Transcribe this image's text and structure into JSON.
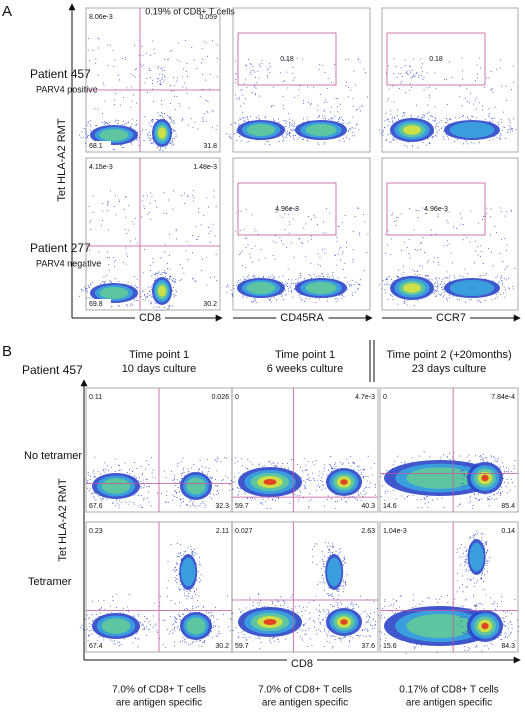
{
  "panel_a": {
    "letter": "A",
    "header": "0.19% of CD8+ T cells",
    "y_axis": "Tet HLA-A2 RMT",
    "x_axes": [
      "CD8",
      "CD45RA",
      "CCR7"
    ],
    "rows": [
      {
        "patient": "Patient 457",
        "status": "PARV4 positive",
        "quadrants": [
          "8.06e-3",
          "0.059",
          "68.1",
          "31.8"
        ],
        "gates": [
          "0.18",
          "0.18"
        ]
      },
      {
        "patient": "Patient 277",
        "status": "PARV4 negative",
        "quadrants": [
          "4.15e-3",
          "1.48e-3",
          "69.8",
          "30.2"
        ],
        "gates": [
          "4.96e-3",
          "4.96e-3"
        ]
      }
    ]
  },
  "panel_b": {
    "letter": "B",
    "patient": "Patient 457",
    "y_axis": "Tet HLA-A2 RMT",
    "x_axis": "CD8",
    "row_labels": [
      "No tetramer",
      "Tetramer"
    ],
    "columns": [
      {
        "header": [
          "Time point 1",
          "10 days culture"
        ],
        "plots": [
          [
            "0.11",
            "0.026",
            "67.6",
            "32.3"
          ],
          [
            "0.23",
            "2.11",
            "67.4",
            "30.2"
          ]
        ],
        "footer": [
          "7.0% of CD8+ T cells",
          "are antigen specific"
        ]
      },
      {
        "header": [
          "Time point 1",
          "6 weeks culture"
        ],
        "plots": [
          [
            "0",
            "4.7e-3",
            "59.7",
            "40.3"
          ],
          [
            "0.027",
            "2.63",
            "59.7",
            "37.6"
          ]
        ],
        "footer": [
          "7.0% of CD8+ T cells",
          "are antigen specific"
        ]
      },
      {
        "header": [
          "Time point 2 (+20months)",
          "23 days culture"
        ],
        "plots": [
          [
            "0",
            "7.84e-4",
            "14.6",
            "85.4"
          ],
          [
            "1.04e-3",
            "0.14",
            "15.6",
            "84.3"
          ]
        ],
        "footer": [
          "0.17% of CD8+ T cells",
          "are antigen specific"
        ]
      }
    ]
  }
}
